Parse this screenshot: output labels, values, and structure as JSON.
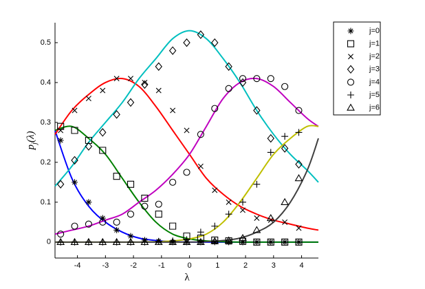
{
  "chart_data": {
    "type": "line",
    "x_label": "λ",
    "y_label": {
      "base": "p",
      "sub": "j",
      "rest": "(λ)"
    },
    "xlim": [
      -4.8,
      4.6
    ],
    "ylim": [
      -0.04,
      0.55
    ],
    "xticks": [
      -4,
      -3,
      -2,
      -1,
      0,
      1,
      2,
      3,
      4
    ],
    "yticks": [
      0,
      0.1,
      0.2,
      0.3,
      0.4,
      0.5
    ],
    "x": [
      -4.6,
      -4.1,
      -3.6,
      -3.1,
      -2.6,
      -2.1,
      -1.6,
      -1.1,
      -0.6,
      -0.1,
      0.4,
      0.9,
      1.4,
      1.9,
      2.4,
      2.9,
      3.4,
      3.9
    ],
    "line_x": [
      -4.8,
      -4.2,
      -3.6,
      -3.0,
      -2.4,
      -1.8,
      -1.2,
      -0.6,
      0,
      0.6,
      1.2,
      1.8,
      2.4,
      3.0,
      3.6,
      4.2,
      4.6
    ],
    "legend": "outside-top-right",
    "series": [
      {
        "name": "j=0",
        "marker": "asterisk",
        "color": "#0000ff",
        "values": [
          0.255,
          0.15,
          0.1,
          0.06,
          0.03,
          0.015,
          0.005,
          0.002,
          0,
          0,
          0,
          0,
          0,
          0,
          0,
          0,
          0,
          0
        ],
        "line_values": [
          0.28,
          0.16,
          0.09,
          0.05,
          0.025,
          0.01,
          0.004,
          0.001,
          0,
          0,
          0,
          0,
          0,
          0,
          0,
          0,
          0
        ]
      },
      {
        "name": "j=1",
        "marker": "square",
        "color": "#008000",
        "values": [
          0.29,
          0.28,
          0.255,
          0.23,
          0.165,
          0.145,
          0.11,
          0.07,
          0.04,
          0.015,
          0.01,
          0.005,
          0.003,
          0.002,
          0,
          0,
          0,
          0
        ],
        "line_values": [
          0.28,
          0.29,
          0.26,
          0.22,
          0.16,
          0.1,
          0.05,
          0.02,
          0.008,
          0.003,
          0.001,
          0,
          0,
          0,
          0,
          0,
          0
        ]
      },
      {
        "name": "j=2",
        "marker": "x",
        "color": "#ff0000",
        "values": [
          0.28,
          0.33,
          0.36,
          0.38,
          0.41,
          0.41,
          0.4,
          0.38,
          0.33,
          0.28,
          0.19,
          0.13,
          0.1,
          0.08,
          0.06,
          0.055,
          0.05,
          0.035
        ],
        "line_values": [
          0.27,
          0.33,
          0.37,
          0.4,
          0.41,
          0.39,
          0.34,
          0.28,
          0.22,
          0.16,
          0.12,
          0.09,
          0.07,
          0.055,
          0.045,
          0.035,
          0.03
        ]
      },
      {
        "name": "j=3",
        "marker": "diamond",
        "color": "#00bfbf",
        "values": [
          0.145,
          0.205,
          0.24,
          0.275,
          0.32,
          0.35,
          0.395,
          0.44,
          0.48,
          0.5,
          0.52,
          0.5,
          0.44,
          0.4,
          0.33,
          0.26,
          0.235,
          0.195
        ],
        "line_values": [
          0.14,
          0.19,
          0.25,
          0.3,
          0.35,
          0.41,
          0.46,
          0.51,
          0.53,
          0.51,
          0.46,
          0.4,
          0.33,
          0.27,
          0.22,
          0.18,
          0.15
        ]
      },
      {
        "name": "j=4",
        "marker": "circle",
        "color": "#bf00bf",
        "values": [
          0.02,
          0.04,
          0.045,
          0.05,
          0.05,
          0.07,
          0.09,
          0.095,
          0.15,
          0.175,
          0.27,
          0.335,
          0.385,
          0.41,
          0.41,
          0.41,
          0.39,
          0.33
        ],
        "line_values": [
          0.02,
          0.03,
          0.04,
          0.055,
          0.07,
          0.1,
          0.13,
          0.17,
          0.22,
          0.29,
          0.36,
          0.4,
          0.41,
          0.39,
          0.35,
          0.31,
          0.29
        ]
      },
      {
        "name": "j=5",
        "marker": "plus",
        "color": "#bfbf00",
        "values": [
          0,
          0,
          0,
          0,
          0,
          0,
          0,
          0.002,
          0.003,
          0.006,
          0.025,
          0.04,
          0.07,
          0.1,
          0.145,
          0.225,
          0.265,
          0.275
        ],
        "line_values": [
          0,
          0,
          0,
          0,
          0,
          0,
          0.001,
          0.003,
          0.008,
          0.02,
          0.05,
          0.1,
          0.16,
          0.22,
          0.26,
          0.29,
          0.29
        ]
      },
      {
        "name": "j=6",
        "marker": "triangle",
        "color": "#404040",
        "values": [
          0,
          0,
          0,
          0,
          0,
          0,
          0,
          0,
          0,
          0,
          0,
          0.002,
          0.004,
          0.01,
          0.03,
          0.06,
          0.1,
          0.16
        ],
        "line_values": [
          0,
          0,
          0,
          0,
          0,
          0,
          0,
          0,
          0,
          0.001,
          0.004,
          0.01,
          0.025,
          0.05,
          0.1,
          0.18,
          0.26
        ]
      }
    ]
  }
}
